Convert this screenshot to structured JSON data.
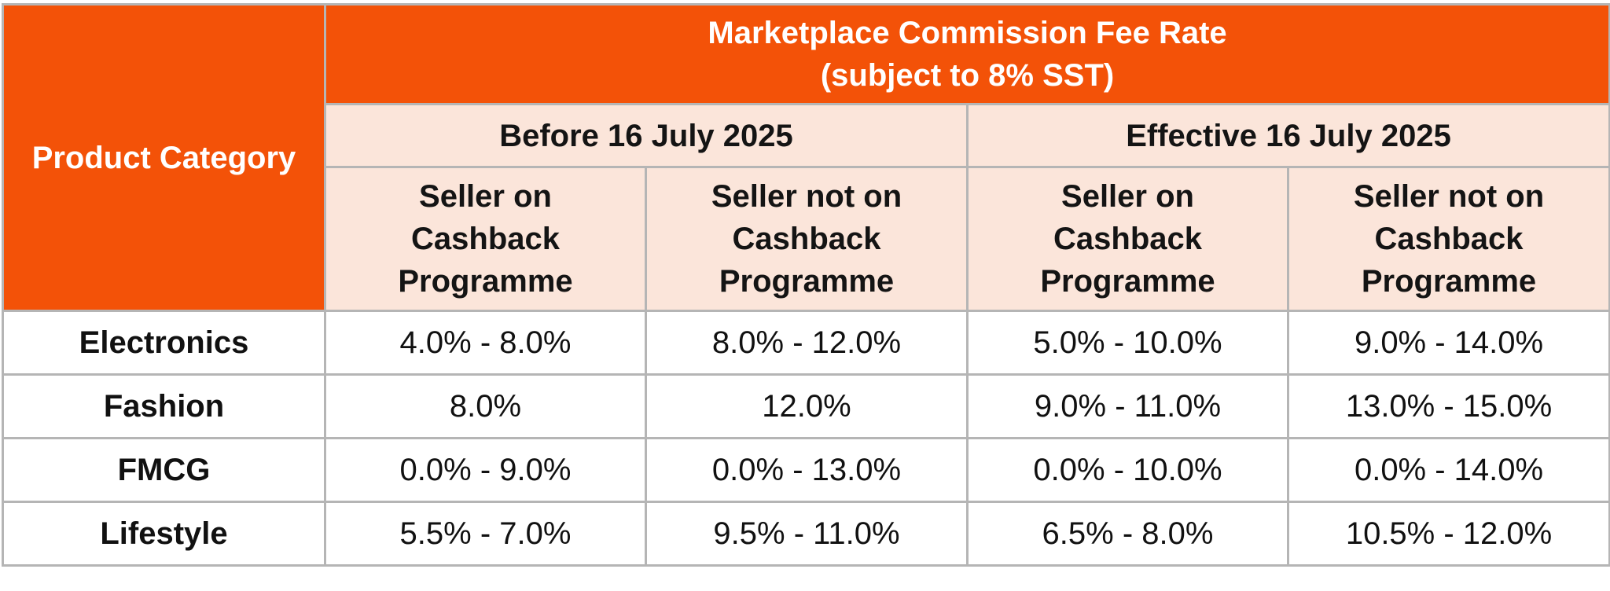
{
  "table": {
    "title_line1": "Marketplace Commission Fee Rate",
    "title_line2": "(subject to 8% SST)",
    "category_header": "Product Category",
    "periods": [
      {
        "label": "Before 16 July 2025"
      },
      {
        "label": "Effective 16 July 2025"
      }
    ],
    "subheaders": [
      {
        "lines": [
          "Seller on",
          "Cashback",
          "Programme"
        ]
      },
      {
        "lines": [
          "Seller not on",
          "Cashback",
          "Programme"
        ]
      },
      {
        "lines": [
          "Seller on",
          "Cashback",
          "Programme"
        ]
      },
      {
        "lines": [
          "Seller not on",
          "Cashback",
          "Programme"
        ]
      }
    ],
    "rows": [
      {
        "category": "Electronics",
        "values": [
          "4.0% - 8.0%",
          "8.0% - 12.0%",
          "5.0% - 10.0%",
          "9.0% - 14.0%"
        ]
      },
      {
        "category": "Fashion",
        "values": [
          "8.0%",
          "12.0%",
          "9.0% - 11.0%",
          "13.0% - 15.0%"
        ]
      },
      {
        "category": "FMCG",
        "values": [
          "0.0% - 9.0%",
          "0.0% - 13.0%",
          "0.0% - 10.0%",
          "0.0% - 14.0%"
        ]
      },
      {
        "category": "Lifestyle",
        "values": [
          "5.5% - 7.0%",
          "9.5% - 11.0%",
          "6.5% - 8.0%",
          "10.5% - 12.0%"
        ]
      }
    ],
    "colors": {
      "header_orange": "#f35208",
      "header_peach": "#fbe5da",
      "border": "#b5b5b5"
    }
  }
}
